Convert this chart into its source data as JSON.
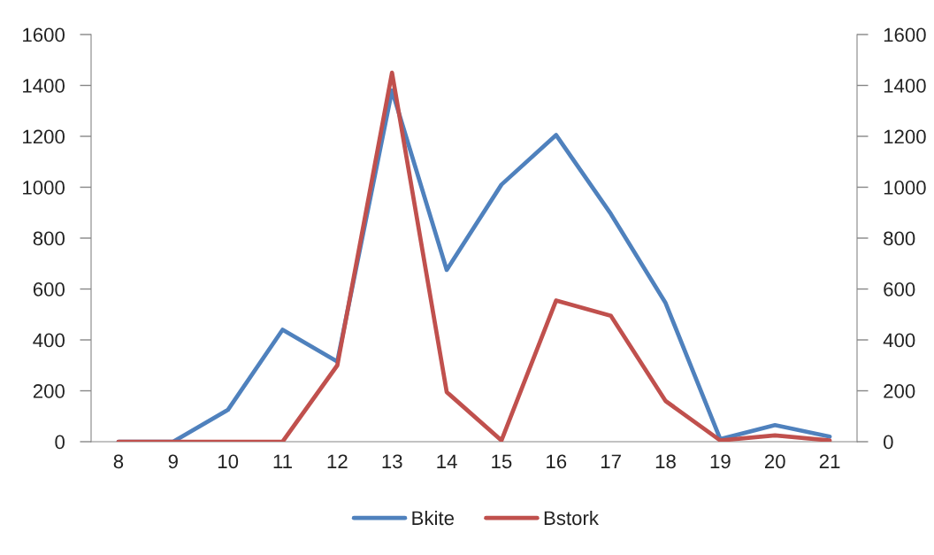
{
  "chart_data": {
    "type": "line",
    "categories": [
      "8",
      "9",
      "10",
      "11",
      "12",
      "13",
      "14",
      "15",
      "16",
      "17",
      "18",
      "19",
      "20",
      "21"
    ],
    "series": [
      {
        "name": "Bkite",
        "color": "#4f81bd",
        "values": [
          0,
          0,
          125,
          440,
          315,
          1380,
          675,
          1010,
          1205,
          895,
          545,
          10,
          65,
          20
        ]
      },
      {
        "name": "Bstork",
        "color": "#c0504d",
        "values": [
          0,
          0,
          0,
          0,
          300,
          1450,
          195,
          5,
          555,
          495,
          160,
          5,
          25,
          5
        ]
      }
    ],
    "ylim": [
      0,
      1600
    ],
    "yticks": [
      0,
      200,
      400,
      600,
      800,
      1000,
      1200,
      1400,
      1600
    ],
    "y2lim": [
      0,
      1600
    ],
    "y2ticks": [
      0,
      200,
      400,
      600,
      800,
      1000,
      1200,
      1400,
      1600
    ],
    "legend": "bottom",
    "grid": false,
    "line_style": "solid"
  }
}
